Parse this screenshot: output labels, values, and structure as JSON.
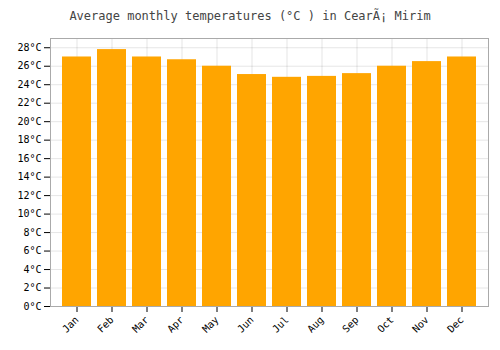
{
  "chart_data": {
    "type": "bar",
    "title": "Average monthly temperatures (°C ) in CearÃ¡ Mirim",
    "categories": [
      "Jan",
      "Feb",
      "Mar",
      "Apr",
      "May",
      "Jun",
      "Jul",
      "Aug",
      "Sep",
      "Oct",
      "Nov",
      "Dec"
    ],
    "values": [
      27.0,
      27.8,
      27.0,
      26.7,
      26.0,
      25.1,
      24.8,
      24.9,
      25.2,
      26.0,
      26.5,
      27.0
    ],
    "color": "#FFA500",
    "ylim": [
      0,
      29
    ],
    "yticks": [
      {
        "value": 0,
        "label": "0°C"
      },
      {
        "value": 2,
        "label": "2°C"
      },
      {
        "value": 4,
        "label": "4°C"
      },
      {
        "value": 6,
        "label": "6°C"
      },
      {
        "value": 8,
        "label": "8°C"
      },
      {
        "value": 10,
        "label": "10°C"
      },
      {
        "value": 12,
        "label": "12°C"
      },
      {
        "value": 14,
        "label": "14°C"
      },
      {
        "value": 16,
        "label": "16°C"
      },
      {
        "value": 18,
        "label": "18°C"
      },
      {
        "value": 20,
        "label": "20°C"
      },
      {
        "value": 22,
        "label": "22°C"
      },
      {
        "value": 24,
        "label": "24°C"
      },
      {
        "value": 26,
        "label": "26°C"
      },
      {
        "value": 28,
        "label": "28°C"
      }
    ],
    "grid": true
  }
}
